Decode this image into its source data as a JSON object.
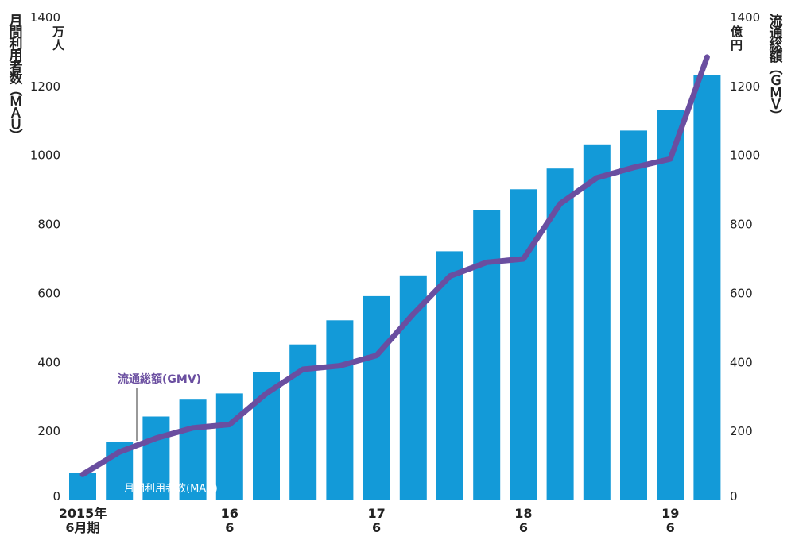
{
  "chart_data": {
    "type": "bar+line",
    "left_axis": {
      "title_chars": [
        "月",
        "間",
        "利",
        "用",
        "者",
        "数",
        "︵",
        "Ｍ",
        "Ａ",
        "Ｕ",
        "︶"
      ],
      "unit_top": "万",
      "unit_bottom": "人",
      "ylim": [
        0,
        1400
      ],
      "ticks": [
        "0",
        "200",
        "400",
        "600",
        "800",
        "1000",
        "1200",
        "1400"
      ]
    },
    "right_axis": {
      "title_chars": [
        "流",
        "通",
        "総",
        "額",
        "︵",
        "Ｇ",
        "Ｍ",
        "Ｖ",
        "︶"
      ],
      "unit_top": "億",
      "unit_bottom": "円",
      "ylim": [
        0,
        1400
      ],
      "ticks": [
        "0",
        "200",
        "400",
        "600",
        "800",
        "1000",
        "1200",
        "1400"
      ]
    },
    "x_labels": [
      {
        "index": 0,
        "line1": "2015年",
        "line2": "6月期"
      },
      {
        "index": 4,
        "line1": "16",
        "line2": "6"
      },
      {
        "index": 8,
        "line1": "17",
        "line2": "6"
      },
      {
        "index": 12,
        "line1": "18",
        "line2": "6"
      },
      {
        "index": 16,
        "line1": "19",
        "line2": "6"
      }
    ],
    "series": [
      {
        "name": "月間利用者数(MAU)",
        "kind": "bar",
        "color": "#139ad8",
        "values": [
          80,
          170,
          243,
          292,
          310,
          372,
          452,
          522,
          592,
          652,
          722,
          842,
          902,
          962,
          1032,
          1072,
          1132,
          1232
        ]
      },
      {
        "name": "流通総額(GMV)",
        "kind": "line",
        "color": "#6a4ea0",
        "values": [
          75,
          140,
          180,
          210,
          220,
          310,
          380,
          390,
          420,
          540,
          650,
          690,
          700,
          860,
          935,
          965,
          990,
          1285
        ]
      }
    ]
  }
}
